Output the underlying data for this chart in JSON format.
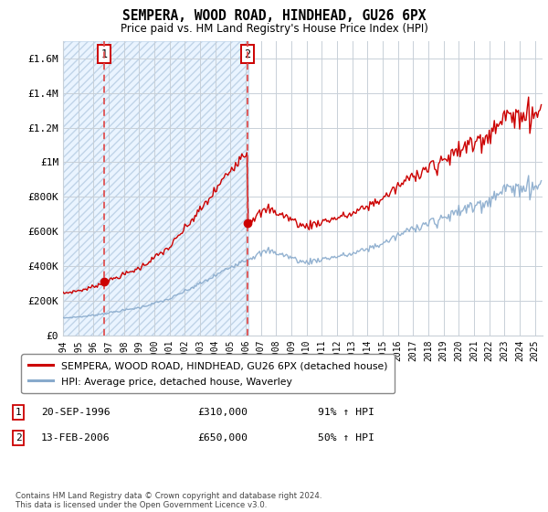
{
  "title": "SEMPERA, WOOD ROAD, HINDHEAD, GU26 6PX",
  "subtitle": "Price paid vs. HM Land Registry's House Price Index (HPI)",
  "ylim": [
    0,
    1700000
  ],
  "yticks": [
    0,
    200000,
    400000,
    600000,
    800000,
    1000000,
    1200000,
    1400000,
    1600000
  ],
  "ytick_labels": [
    "£0",
    "£200K",
    "£400K",
    "£600K",
    "£800K",
    "£1M",
    "£1.2M",
    "£1.4M",
    "£1.6M"
  ],
  "sale1_price": 310000,
  "sale1_label": "1",
  "sale1_year": 1996.72,
  "sale2_price": 650000,
  "sale2_label": "2",
  "sale2_year": 2006.12,
  "legend_red": "SEMPERA, WOOD ROAD, HINDHEAD, GU26 6PX (detached house)",
  "legend_blue": "HPI: Average price, detached house, Waverley",
  "footer": "Contains HM Land Registry data © Crown copyright and database right 2024.\nThis data is licensed under the Open Government Licence v3.0.",
  "grid_color": "#c8d0d8",
  "dashed_color": "#e05050",
  "red_line_color": "#cc0000",
  "blue_line_color": "#88aacc"
}
